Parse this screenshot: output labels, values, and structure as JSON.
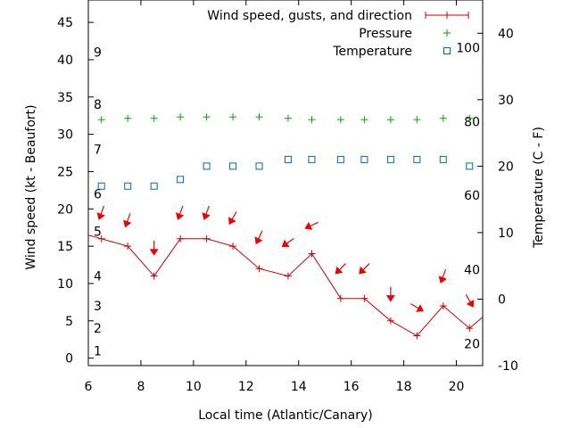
{
  "chart_data": {
    "type": "line",
    "xlabel": "Local time (Atlantic/Canary)",
    "ylabel": "Wind speed (kt - Beaufort)",
    "y2label": "Temperature (C - F)",
    "xlim": [
      6,
      21
    ],
    "ylim": [
      -1,
      48
    ],
    "y2lim": [
      -10,
      45
    ],
    "x_ticks": [
      6,
      8,
      10,
      12,
      14,
      16,
      18,
      20
    ],
    "y_ticks": [
      0,
      5,
      10,
      15,
      20,
      25,
      30,
      35,
      40,
      45
    ],
    "y2_ticks": [
      -10,
      0,
      10,
      20,
      30,
      40
    ],
    "beaufort_labels": [
      {
        "label": "1",
        "y": 1
      },
      {
        "label": "2",
        "y": 4
      },
      {
        "label": "3",
        "y": 7
      },
      {
        "label": "4",
        "y": 11
      },
      {
        "label": "5",
        "y": 17
      },
      {
        "label": "6",
        "y": 22
      },
      {
        "label": "7",
        "y": 28
      },
      {
        "label": "8",
        "y": 34
      },
      {
        "label": "9",
        "y": 41
      }
    ],
    "fahrenheit_labels": [
      {
        "label": "20",
        "y2": -6.7
      },
      {
        "label": "40",
        "y2": 4.4
      },
      {
        "label": "60",
        "y2": 15.6
      },
      {
        "label": "80",
        "y2": 26.7
      },
      {
        "label": "100",
        "y2": 37.8
      }
    ],
    "legend": {
      "position": "top-right",
      "entries": [
        {
          "label": "Wind speed, gusts, and direction",
          "marker": "line"
        },
        {
          "label": "Pressure",
          "marker": "plus"
        },
        {
          "label": "Temperature",
          "marker": "square"
        }
      ]
    },
    "colors": {
      "wind": "#cc0000",
      "arrows": "#ee0000",
      "pressure": "#00aa00",
      "temperature": "#0066bb"
    },
    "series": [
      {
        "name": "Wind speed, gusts, and direction",
        "axis": "left",
        "x": [
          6,
          6.5,
          7.5,
          8.5,
          9.5,
          10.5,
          11.5,
          12.5,
          13.6,
          14.5,
          15.6,
          16.5,
          17.5,
          18.5,
          19.5,
          20.5,
          21
        ],
        "y": [
          16.5,
          16,
          15,
          11,
          16,
          16,
          15,
          12,
          11,
          14,
          8,
          8,
          5,
          3,
          7,
          4,
          5.5
        ],
        "marker_x": [
          6.5,
          7.5,
          8.5,
          9.5,
          10.5,
          11.5,
          12.5,
          13.6,
          14.5,
          15.6,
          16.5,
          17.5,
          18.5,
          19.5,
          20.5
        ]
      },
      {
        "name": "Pressure",
        "axis": "right",
        "x": [
          6.5,
          7.5,
          8.5,
          9.5,
          10.5,
          11.5,
          12.5,
          13.6,
          14.5,
          15.6,
          16.5,
          17.5,
          18.5,
          19.5,
          20.5
        ],
        "y": [
          27,
          27.2,
          27.2,
          27.4,
          27.4,
          27.4,
          27.4,
          27.2,
          27,
          27,
          27,
          27,
          27,
          27.2,
          27.2
        ]
      },
      {
        "name": "Temperature",
        "axis": "right",
        "x": [
          6.5,
          7.5,
          8.5,
          9.5,
          10.5,
          11.5,
          12.5,
          13.6,
          14.5,
          15.6,
          16.5,
          17.5,
          18.5,
          19.5,
          20.5
        ],
        "y": [
          17,
          17,
          17,
          18,
          20,
          20,
          20,
          21,
          21,
          21,
          21,
          21,
          21,
          21,
          20
        ]
      }
    ],
    "wind_direction_arrows": [
      {
        "x": 6.5,
        "y": 19.5,
        "dir_deg": 20
      },
      {
        "x": 7.5,
        "y": 18.5,
        "dir_deg": 20
      },
      {
        "x": 8.5,
        "y": 14.8,
        "dir_deg": 0
      },
      {
        "x": 9.5,
        "y": 19.5,
        "dir_deg": 20
      },
      {
        "x": 10.5,
        "y": 19.5,
        "dir_deg": 20
      },
      {
        "x": 11.5,
        "y": 18.8,
        "dir_deg": 30
      },
      {
        "x": 12.5,
        "y": 16.2,
        "dir_deg": 25
      },
      {
        "x": 13.6,
        "y": 15.5,
        "dir_deg": 55
      },
      {
        "x": 14.5,
        "y": 17.8,
        "dir_deg": 65
      },
      {
        "x": 15.6,
        "y": 12,
        "dir_deg": 45
      },
      {
        "x": 16.5,
        "y": 12,
        "dir_deg": 45
      },
      {
        "x": 17.5,
        "y": 8.6,
        "dir_deg": 0
      },
      {
        "x": 18.5,
        "y": 6.8,
        "dir_deg": 300
      },
      {
        "x": 19.5,
        "y": 11,
        "dir_deg": 20
      },
      {
        "x": 20.5,
        "y": 7.7,
        "dir_deg": 330
      }
    ]
  }
}
